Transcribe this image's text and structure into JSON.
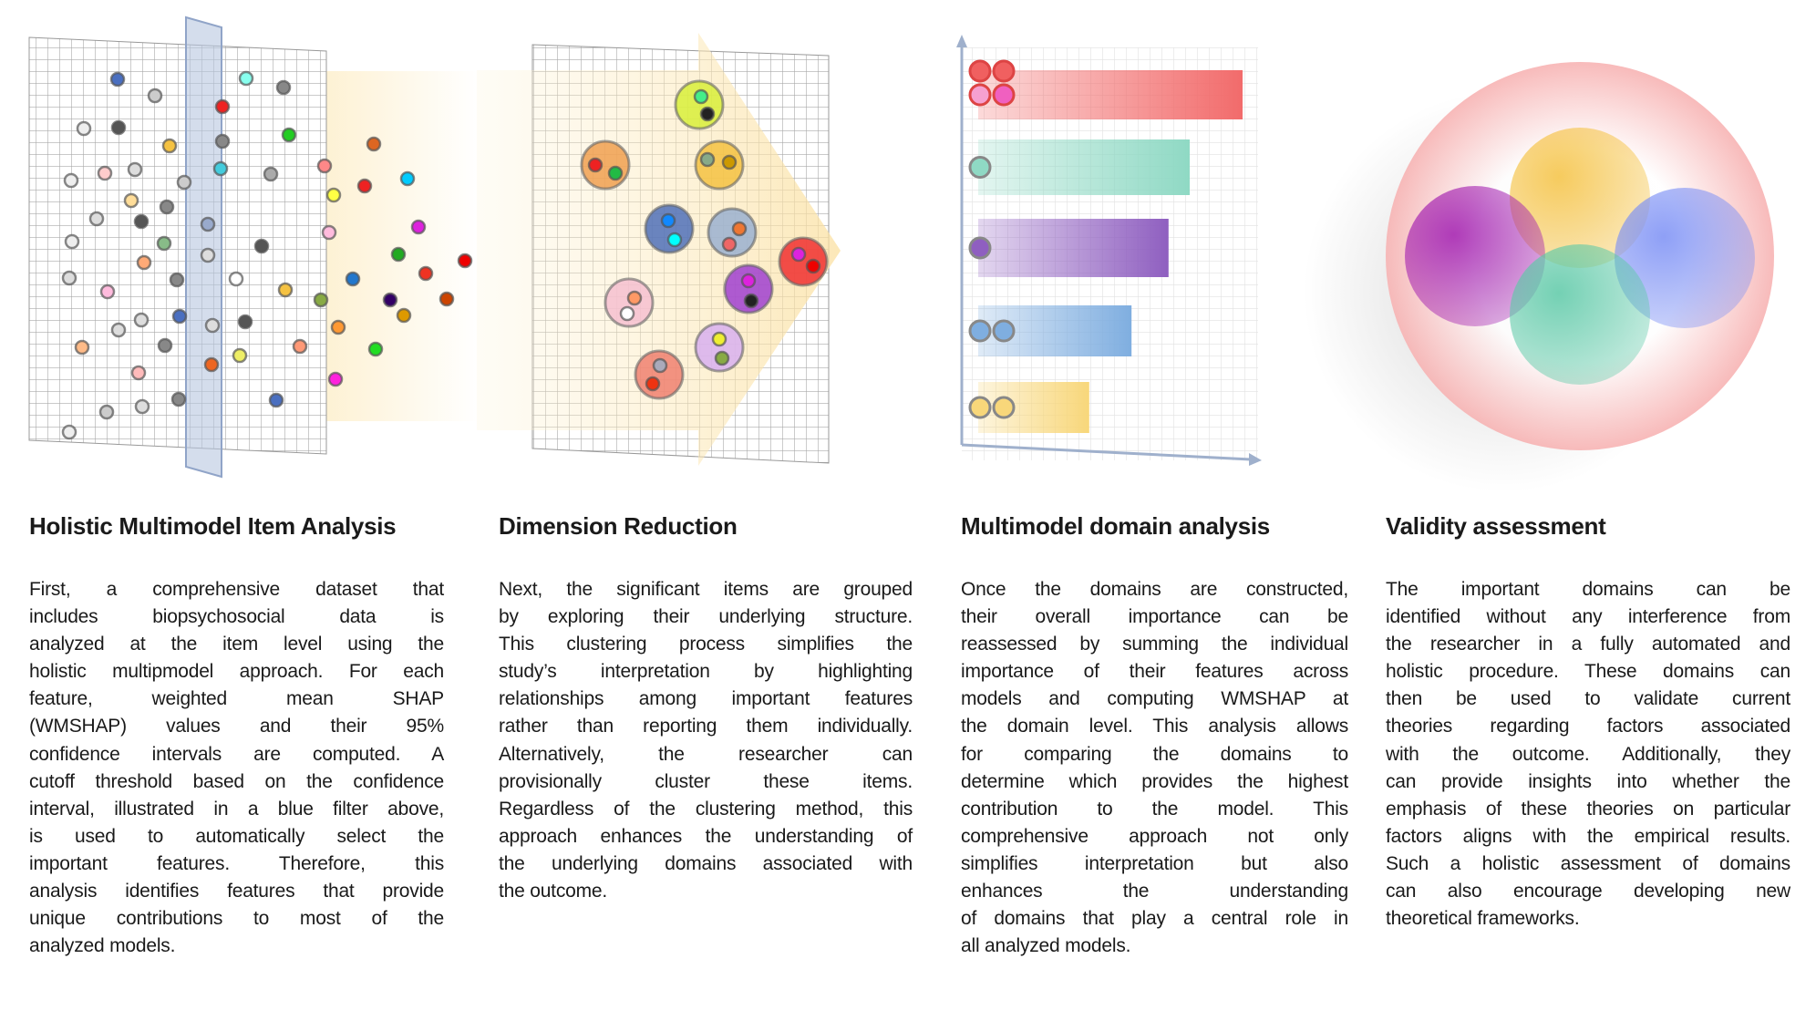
{
  "panels": [
    {
      "title": "Holistic Multimodel Item Analysis",
      "lines": [
        "First, a comprehensive dataset that",
        "includes biopsychosocial data is",
        "analyzed at the item level using the",
        "holistic multipmodel approach. For each",
        "feature, weighted mean SHAP",
        "(WMSHAP) values and their 95%",
        "confidence intervals are computed. A",
        "cutoff threshold based on the confidence",
        "interval, illustrated in a blue filter above,",
        "is used to automatically select the",
        "important features. Therefore, this",
        "analysis identifies features that provide",
        "unique contributions to most of the",
        "analyzed models."
      ]
    },
    {
      "title": "Dimension Reduction",
      "lines": [
        "Next, the significant items are grouped",
        "by exploring their underlying structure.",
        "This clustering process simplifies the",
        "study’s interpretation by highlighting",
        "relationships among important features",
        "rather than reporting them individually.",
        "Alternatively, the researcher can",
        "provisionally cluster these items.",
        "Regardless of the clustering method, this",
        "approach enhances the understanding of",
        "the underlying domains associated with",
        "the outcome."
      ]
    },
    {
      "title": "Multimodel domain analysis",
      "lines": [
        "Once the domains are constructed,",
        "their overall importance can be",
        "reassessed by summing the individual",
        "importance of their features across",
        "models and computing WMSHAP at",
        "the domain level. This analysis allows",
        "for comparing the domains to",
        "determine which provides the highest",
        "contribution to the model. This",
        "comprehensive approach not only",
        "simplifies interpretation but also",
        "enhances the understanding",
        "of domains that play a central role in",
        "all analyzed models."
      ]
    },
    {
      "title": "Validity assessment",
      "lines": [
        "The important domains can be",
        "identified without any interference from",
        "the researcher in a fully automated and",
        "holistic procedure. These domains can",
        "then be used to validate current",
        "theories regarding factors associated",
        "with the outcome. Additionally, they",
        "can provide insights into whether the",
        "emphasis of these theories on particular",
        "factors aligns with the empirical results.",
        "Such a holistic assessment of domains",
        "can also encourage developing new",
        "theoretical frameworks."
      ]
    }
  ],
  "colors": {
    "filter": "#b8c6e0",
    "arrow": "#fbe6a8",
    "domains": [
      "#f26b6b",
      "#8fd9c4",
      "#8f5fc0",
      "#7faee0",
      "#f8d77a"
    ],
    "venn": [
      "#f5c242",
      "#a21caf",
      "#7b8ff5",
      "#5cc9a7"
    ],
    "halo": "#f7b3b3"
  },
  "domain_bars": {
    "relative_importance": [
      1.0,
      0.8,
      0.72,
      0.58,
      0.42
    ]
  }
}
